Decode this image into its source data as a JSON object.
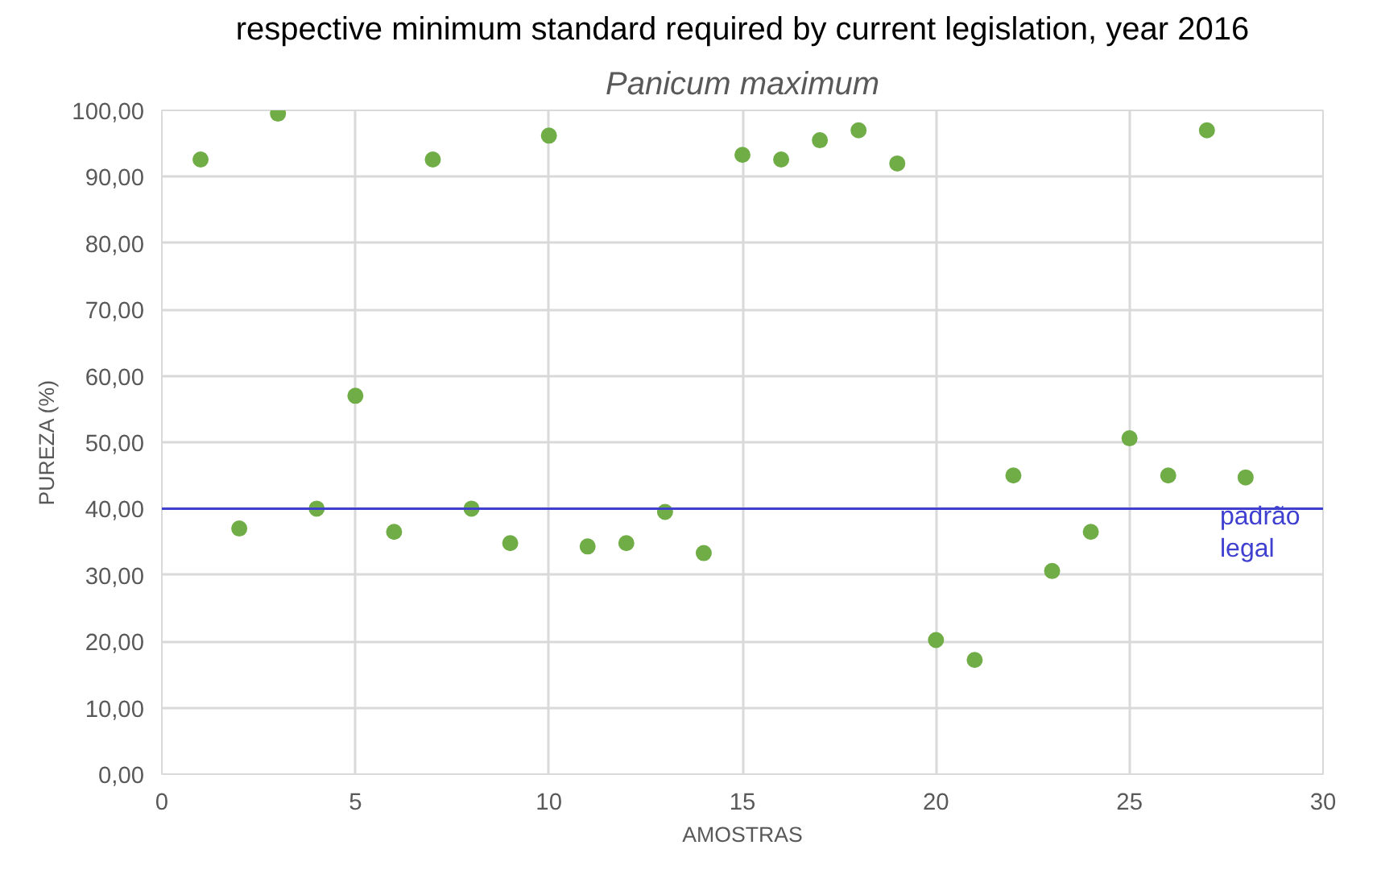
{
  "chart_data": {
    "type": "scatter",
    "title": "Panicum maximum",
    "annotations": [
      "respective minimum standard required by current legislation, year 2016"
    ],
    "xlabel": "AMOSTRAS",
    "ylabel": "PUREZA (%)",
    "x": [
      1,
      2,
      3,
      4,
      5,
      6,
      7,
      8,
      9,
      10,
      11,
      12,
      13,
      14,
      15,
      16,
      17,
      18,
      19,
      20,
      21,
      22,
      23,
      24,
      25,
      26,
      27,
      28
    ],
    "series": [
      {
        "color": "#70ad47",
        "values": [
          92.6,
          37,
          99.5,
          40,
          57,
          36.5,
          92.6,
          40,
          34.8,
          96.2,
          34.3,
          34.8,
          39.5,
          33.3,
          93.3,
          92.6,
          95.5,
          97,
          92,
          20.2,
          17.2,
          45,
          30.6,
          36.5,
          50.6,
          45,
          97,
          44.7
        ]
      }
    ],
    "xlim": [
      0,
      30
    ],
    "xticks": [
      0,
      5,
      10,
      15,
      20,
      25,
      30
    ],
    "ylim": [
      0,
      100
    ],
    "yticks": [
      {
        "value": 0,
        "label": "0,00"
      },
      {
        "value": 10,
        "label": "10,00"
      },
      {
        "value": 20,
        "label": "20,00"
      },
      {
        "value": 30,
        "label": "30,00"
      },
      {
        "value": 40,
        "label": "40,00"
      },
      {
        "value": 50,
        "label": "50,00"
      },
      {
        "value": 60,
        "label": "60,00"
      },
      {
        "value": 70,
        "label": "70,00"
      },
      {
        "value": 80,
        "label": "80,00"
      },
      {
        "value": 90,
        "label": "90,00"
      },
      {
        "value": 100,
        "label": "100,00"
      }
    ],
    "ref_lines": [
      {
        "axis": "y",
        "value": 40,
        "label": "padrão\nlegal",
        "color": "#4040d0"
      }
    ],
    "grid": true,
    "marker": "circle"
  }
}
